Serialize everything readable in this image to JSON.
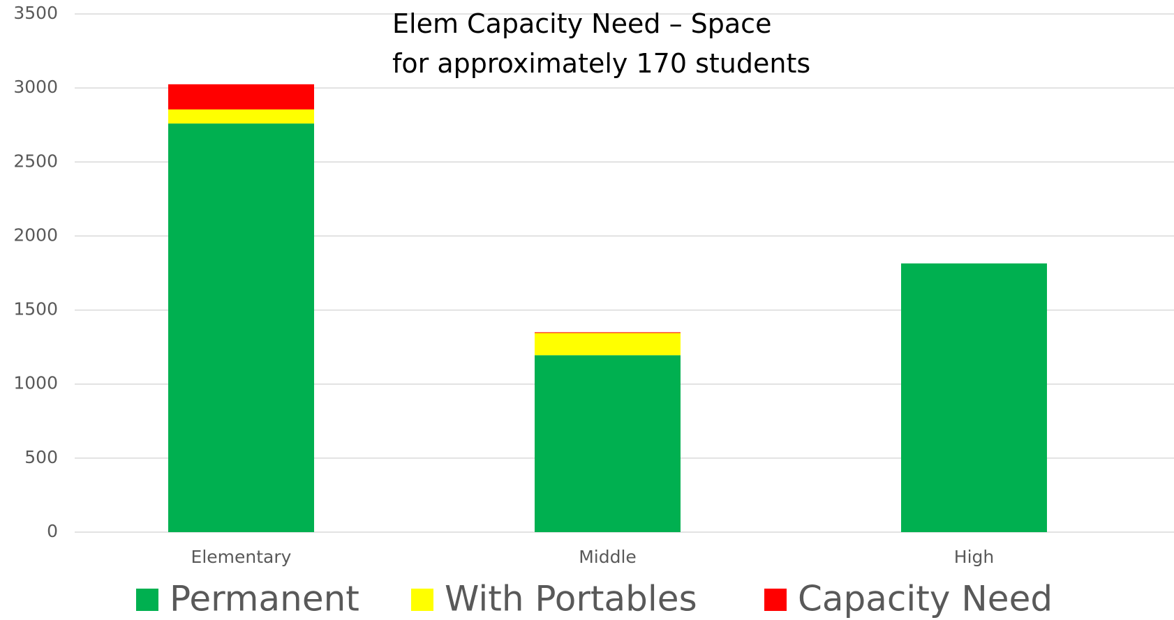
{
  "chart_data": {
    "type": "stacked_bar",
    "annotation": "Elem Capacity Need – Space for approximately 170 students",
    "categories": [
      "Elementary",
      "Middle",
      "High"
    ],
    "series": [
      {
        "name": "Permanent",
        "color": "#00b050",
        "values": [
          2760,
          1195,
          1815
        ]
      },
      {
        "name": "With Portables",
        "color": "#ffff00",
        "values": [
          95,
          150,
          0
        ]
      },
      {
        "name": "Capacity Need",
        "color": "#ff0000",
        "values": [
          170,
          5,
          0
        ]
      }
    ],
    "ylim": [
      0,
      3500
    ],
    "yticks": [
      0,
      500,
      1000,
      1500,
      2000,
      2500,
      3000,
      3500
    ],
    "grid": true,
    "legend": "bottom"
  }
}
